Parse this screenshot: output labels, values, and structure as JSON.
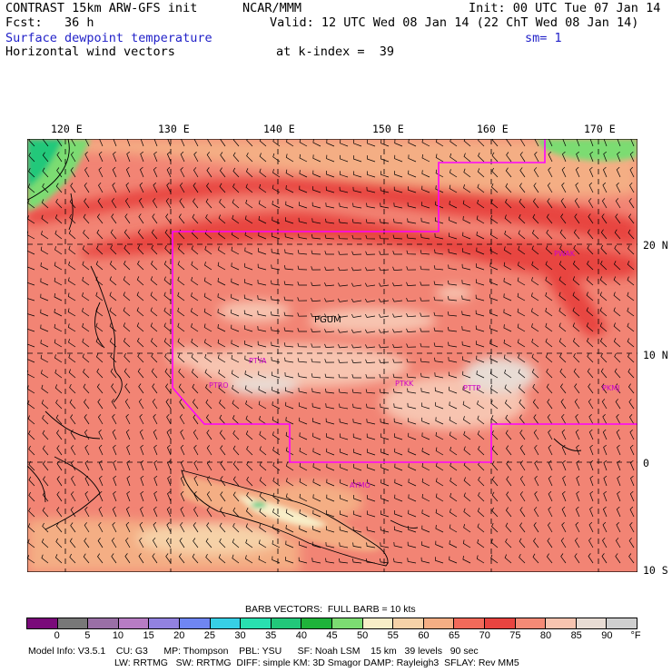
{
  "header": {
    "model_title": "CONTRAST 15km ARW-GFS init",
    "org": "NCAR/MMM",
    "init": "Init: 00 UTC Tue 07 Jan 14",
    "fcst": "Fcst:   36 h",
    "valid": "Valid: 12 UTC Wed 08 Jan 14 (22 ChT Wed 08 Jan 14)",
    "field1": "Surface dewpoint temperature",
    "sm": "sm= 1",
    "field2": "Horizontal wind vectors",
    "kindex": "at k-index =  39"
  },
  "map": {
    "lon_labels": [
      "120 E",
      "130 E",
      "140 E",
      "150 E",
      "160 E",
      "170 E"
    ],
    "lat_labels": [
      "20 N",
      "10 N",
      "0",
      "10 S"
    ],
    "stations": [
      {
        "id": "PGUM",
        "color": "#000000"
      },
      {
        "id": "PTYA",
        "color": "#cc00cc"
      },
      {
        "id": "PTRO",
        "color": "#cc00cc"
      },
      {
        "id": "PTKK",
        "color": "#cc00cc"
      },
      {
        "id": "PTTP",
        "color": "#cc00cc"
      },
      {
        "id": "PKMJ",
        "color": "#cc00cc"
      },
      {
        "id": "PWAK",
        "color": "#cc00cc"
      },
      {
        "id": "AYMO",
        "color": "#cc00cc"
      }
    ],
    "boundary_color": "#ff00ff"
  },
  "colorbar": {
    "title": "BARB VECTORS:  FULL BARB = 10 kts",
    "labels": [
      "0",
      "5",
      "10",
      "15",
      "20",
      "25",
      "30",
      "35",
      "40",
      "45",
      "50",
      "55",
      "60",
      "65",
      "70",
      "75",
      "80",
      "85",
      "90"
    ],
    "unit": "°F",
    "colors": [
      "#7a0a7a",
      "#787878",
      "#9a6fa6",
      "#b77cc4",
      "#9282e0",
      "#6f86f2",
      "#37cfe6",
      "#29e0b0",
      "#22c87a",
      "#1fb33a",
      "#7cdc72",
      "#f8eec8",
      "#f6d2a8",
      "#f4ae84",
      "#f26a5a",
      "#e84440",
      "#f48a76",
      "#f7c4b0",
      "#e8dcd4",
      "#cfcfcf"
    ]
  },
  "footer": {
    "line1": "Model Info: V3.5.1    CU: G3      MP: Thompson    PBL: YSU      SF: Noah LSM    15 km   39 levels   90 sec",
    "line2": "LW: RRTMG   SW: RRTMG  DIFF: simple KM: 3D Smagor DAMP: Rayleigh3  SFLAY: Rev MM5"
  }
}
